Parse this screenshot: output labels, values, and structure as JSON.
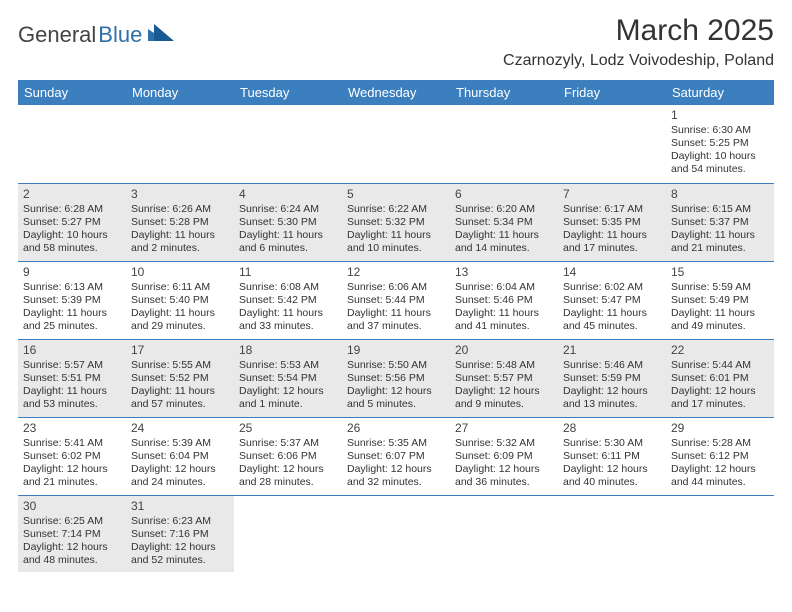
{
  "logo": {
    "text1": "General",
    "text2": "Blue"
  },
  "title": "March 2025",
  "location": "Czarnozyly, Lodz Voivodeship, Poland",
  "theme": {
    "header_bg": "#3b7fbf",
    "header_fg": "#ffffff",
    "row_even_bg": "#e9e9e9",
    "row_odd_bg": "#ffffff",
    "divider": "#3b7fbf",
    "text": "#333333"
  },
  "weekdays": [
    "Sunday",
    "Monday",
    "Tuesday",
    "Wednesday",
    "Thursday",
    "Friday",
    "Saturday"
  ],
  "weeks": [
    [
      null,
      null,
      null,
      null,
      null,
      null,
      {
        "n": "1",
        "sr": "6:30 AM",
        "ss": "5:25 PM",
        "dl": "10 hours and 54 minutes."
      }
    ],
    [
      {
        "n": "2",
        "sr": "6:28 AM",
        "ss": "5:27 PM",
        "dl": "10 hours and 58 minutes."
      },
      {
        "n": "3",
        "sr": "6:26 AM",
        "ss": "5:28 PM",
        "dl": "11 hours and 2 minutes."
      },
      {
        "n": "4",
        "sr": "6:24 AM",
        "ss": "5:30 PM",
        "dl": "11 hours and 6 minutes."
      },
      {
        "n": "5",
        "sr": "6:22 AM",
        "ss": "5:32 PM",
        "dl": "11 hours and 10 minutes."
      },
      {
        "n": "6",
        "sr": "6:20 AM",
        "ss": "5:34 PM",
        "dl": "11 hours and 14 minutes."
      },
      {
        "n": "7",
        "sr": "6:17 AM",
        "ss": "5:35 PM",
        "dl": "11 hours and 17 minutes."
      },
      {
        "n": "8",
        "sr": "6:15 AM",
        "ss": "5:37 PM",
        "dl": "11 hours and 21 minutes."
      }
    ],
    [
      {
        "n": "9",
        "sr": "6:13 AM",
        "ss": "5:39 PM",
        "dl": "11 hours and 25 minutes."
      },
      {
        "n": "10",
        "sr": "6:11 AM",
        "ss": "5:40 PM",
        "dl": "11 hours and 29 minutes."
      },
      {
        "n": "11",
        "sr": "6:08 AM",
        "ss": "5:42 PM",
        "dl": "11 hours and 33 minutes."
      },
      {
        "n": "12",
        "sr": "6:06 AM",
        "ss": "5:44 PM",
        "dl": "11 hours and 37 minutes."
      },
      {
        "n": "13",
        "sr": "6:04 AM",
        "ss": "5:46 PM",
        "dl": "11 hours and 41 minutes."
      },
      {
        "n": "14",
        "sr": "6:02 AM",
        "ss": "5:47 PM",
        "dl": "11 hours and 45 minutes."
      },
      {
        "n": "15",
        "sr": "5:59 AM",
        "ss": "5:49 PM",
        "dl": "11 hours and 49 minutes."
      }
    ],
    [
      {
        "n": "16",
        "sr": "5:57 AM",
        "ss": "5:51 PM",
        "dl": "11 hours and 53 minutes."
      },
      {
        "n": "17",
        "sr": "5:55 AM",
        "ss": "5:52 PM",
        "dl": "11 hours and 57 minutes."
      },
      {
        "n": "18",
        "sr": "5:53 AM",
        "ss": "5:54 PM",
        "dl": "12 hours and 1 minute."
      },
      {
        "n": "19",
        "sr": "5:50 AM",
        "ss": "5:56 PM",
        "dl": "12 hours and 5 minutes."
      },
      {
        "n": "20",
        "sr": "5:48 AM",
        "ss": "5:57 PM",
        "dl": "12 hours and 9 minutes."
      },
      {
        "n": "21",
        "sr": "5:46 AM",
        "ss": "5:59 PM",
        "dl": "12 hours and 13 minutes."
      },
      {
        "n": "22",
        "sr": "5:44 AM",
        "ss": "6:01 PM",
        "dl": "12 hours and 17 minutes."
      }
    ],
    [
      {
        "n": "23",
        "sr": "5:41 AM",
        "ss": "6:02 PM",
        "dl": "12 hours and 21 minutes."
      },
      {
        "n": "24",
        "sr": "5:39 AM",
        "ss": "6:04 PM",
        "dl": "12 hours and 24 minutes."
      },
      {
        "n": "25",
        "sr": "5:37 AM",
        "ss": "6:06 PM",
        "dl": "12 hours and 28 minutes."
      },
      {
        "n": "26",
        "sr": "5:35 AM",
        "ss": "6:07 PM",
        "dl": "12 hours and 32 minutes."
      },
      {
        "n": "27",
        "sr": "5:32 AM",
        "ss": "6:09 PM",
        "dl": "12 hours and 36 minutes."
      },
      {
        "n": "28",
        "sr": "5:30 AM",
        "ss": "6:11 PM",
        "dl": "12 hours and 40 minutes."
      },
      {
        "n": "29",
        "sr": "5:28 AM",
        "ss": "6:12 PM",
        "dl": "12 hours and 44 minutes."
      }
    ],
    [
      {
        "n": "30",
        "sr": "6:25 AM",
        "ss": "7:14 PM",
        "dl": "12 hours and 48 minutes."
      },
      {
        "n": "31",
        "sr": "6:23 AM",
        "ss": "7:16 PM",
        "dl": "12 hours and 52 minutes."
      },
      null,
      null,
      null,
      null,
      null
    ]
  ]
}
